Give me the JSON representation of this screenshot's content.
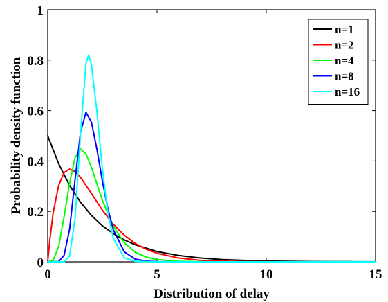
{
  "chart_data": {
    "type": "line",
    "title": "",
    "xlabel": "Distribution of delay",
    "ylabel": "Probability density function",
    "xlim": [
      0,
      15
    ],
    "ylim": [
      0,
      1
    ],
    "xticks": [
      0,
      5,
      10,
      15
    ],
    "yticks": [
      0,
      0.2,
      0.4,
      0.6,
      0.8,
      1
    ],
    "xtick_labels": [
      "0",
      "5",
      "10",
      "15"
    ],
    "ytick_labels": [
      "0",
      "0.2",
      "0.4",
      "0.6",
      "0.8",
      "1"
    ],
    "grid": false,
    "legend_position": "top-right",
    "series": [
      {
        "name": "n=1",
        "color": "#000000",
        "values": [
          [
            0,
            0.5
          ],
          [
            0.5,
            0.389
          ],
          [
            1,
            0.303
          ],
          [
            1.5,
            0.236
          ],
          [
            2,
            0.184
          ],
          [
            2.5,
            0.143
          ],
          [
            3,
            0.112
          ],
          [
            3.5,
            0.087
          ],
          [
            4,
            0.068
          ],
          [
            5,
            0.041
          ],
          [
            6,
            0.025
          ],
          [
            7,
            0.015
          ],
          [
            8,
            0.009
          ],
          [
            9,
            0.006
          ],
          [
            10,
            0.003
          ],
          [
            11,
            0.002
          ],
          [
            12,
            0.001
          ],
          [
            13,
            0.0008
          ],
          [
            14,
            0.0005
          ],
          [
            15,
            0.0003
          ]
        ]
      },
      {
        "name": "n=2",
        "color": "#ff0000",
        "values": [
          [
            0,
            0
          ],
          [
            0.1,
            0.09
          ],
          [
            0.25,
            0.195
          ],
          [
            0.5,
            0.303
          ],
          [
            0.75,
            0.354
          ],
          [
            1,
            0.368
          ],
          [
            1.25,
            0.358
          ],
          [
            1.5,
            0.335
          ],
          [
            2,
            0.271
          ],
          [
            2.5,
            0.205
          ],
          [
            3,
            0.149
          ],
          [
            3.5,
            0.106
          ],
          [
            4,
            0.073
          ],
          [
            4.5,
            0.05
          ],
          [
            5,
            0.034
          ],
          [
            6,
            0.015
          ],
          [
            7,
            0.006
          ],
          [
            8,
            0.003
          ],
          [
            9,
            0.001
          ],
          [
            10,
            0.0005
          ],
          [
            12,
            0.0001
          ],
          [
            15,
            0
          ]
        ]
      },
      {
        "name": "n=4",
        "color": "#00ff00",
        "values": [
          [
            0,
            0
          ],
          [
            0.25,
            0.006
          ],
          [
            0.5,
            0.061
          ],
          [
            0.75,
            0.179
          ],
          [
            1,
            0.312
          ],
          [
            1.25,
            0.412
          ],
          [
            1.5,
            0.448
          ],
          [
            1.75,
            0.428
          ],
          [
            2,
            0.375
          ],
          [
            2.5,
            0.244
          ],
          [
            3,
            0.142
          ],
          [
            3.5,
            0.076
          ],
          [
            4,
            0.038
          ],
          [
            4.5,
            0.019
          ],
          [
            5,
            0.009
          ],
          [
            6,
            0.002
          ],
          [
            7,
            0.0004
          ],
          [
            8,
            0
          ],
          [
            15,
            0
          ]
        ]
      },
      {
        "name": "n=8",
        "color": "#0000ff",
        "values": [
          [
            0,
            0
          ],
          [
            0.5,
            0.001
          ],
          [
            0.75,
            0.026
          ],
          [
            1,
            0.129
          ],
          [
            1.25,
            0.325
          ],
          [
            1.5,
            0.513
          ],
          [
            1.75,
            0.593
          ],
          [
            2,
            0.554
          ],
          [
            2.25,
            0.447
          ],
          [
            2.5,
            0.321
          ],
          [
            2.75,
            0.211
          ],
          [
            3,
            0.128
          ],
          [
            3.5,
            0.04
          ],
          [
            4,
            0.011
          ],
          [
            4.5,
            0.003
          ],
          [
            5,
            0.0006
          ],
          [
            6,
            0
          ],
          [
            15,
            0
          ]
        ]
      },
      {
        "name": "n=16",
        "color": "#00ffff",
        "values": [
          [
            0,
            0
          ],
          [
            0.75,
            0
          ],
          [
            1,
            0.023
          ],
          [
            1.25,
            0.172
          ],
          [
            1.5,
            0.507
          ],
          [
            1.75,
            0.788
          ],
          [
            1.875,
            0.82
          ],
          [
            2,
            0.781
          ],
          [
            2.25,
            0.597
          ],
          [
            2.5,
            0.369
          ],
          [
            2.75,
            0.196
          ],
          [
            3,
            0.093
          ],
          [
            3.5,
            0.016
          ],
          [
            4,
            0.002
          ],
          [
            5,
            0
          ],
          [
            15,
            0
          ]
        ]
      }
    ]
  }
}
